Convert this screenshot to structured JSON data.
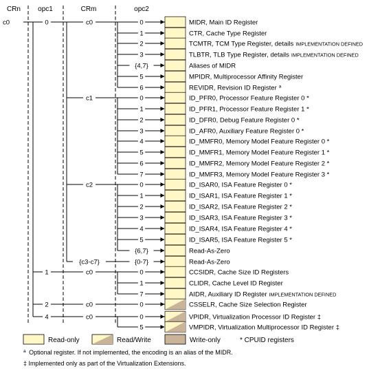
{
  "headers": {
    "crn": "CRn",
    "opc1": "opc1",
    "crm": "CRm",
    "opc2": "opc2"
  },
  "crn_label": "c0",
  "opc1_labels": [
    "0",
    "1",
    "2",
    "4"
  ],
  "crm_labels": [
    "c0",
    "c1",
    "c2",
    "{c3-c7}",
    "c0",
    "c0",
    "c0"
  ],
  "rows": [
    {
      "opc2": "0",
      "name": "MIDR, Main ID Register",
      "suffix": "",
      "fill": "ro"
    },
    {
      "opc2": "1",
      "name": "CTR, Cache Type Register",
      "suffix": "",
      "fill": "ro"
    },
    {
      "opc2": "2",
      "name": "TCMTR, TCM Type Register, details",
      "suffix": "IMPLEMENTATION DEFINED",
      "fill": "ro"
    },
    {
      "opc2": "3",
      "name": "TLBTR, TLB Type Register, details",
      "suffix": "IMPLEMENTATION DEFINED",
      "fill": "ro"
    },
    {
      "opc2": "{4,7}",
      "name": "Aliases of MIDR",
      "suffix": "",
      "fill": "ro"
    },
    {
      "opc2": "5",
      "name": "MPIDR, Multiprocessor Affinity Register",
      "suffix": "",
      "fill": "ro"
    },
    {
      "opc2": "6",
      "name": "REVIDR, Revision ID Register",
      "suffix": "",
      "sup": "a",
      "fill": "ro"
    },
    {
      "opc2": "0",
      "name": "ID_PFR0, Processor Feature Register 0 *",
      "suffix": "",
      "fill": "ro"
    },
    {
      "opc2": "1",
      "name": "ID_PFR1, Processor Feature Register 1 *",
      "suffix": "",
      "fill": "ro"
    },
    {
      "opc2": "2",
      "name": "ID_DFR0, Debug Feature Register 0 *",
      "suffix": "",
      "fill": "ro"
    },
    {
      "opc2": "3",
      "name": "ID_AFR0, Auxiliary Feature Register 0 *",
      "suffix": "",
      "fill": "ro"
    },
    {
      "opc2": "4",
      "name": "ID_MMFR0, Memory Model Feature Register 0 *",
      "suffix": "",
      "fill": "ro"
    },
    {
      "opc2": "5",
      "name": "ID_MMFR1, Memory Model Feature Register 1 *",
      "suffix": "",
      "fill": "ro"
    },
    {
      "opc2": "6",
      "name": "ID_MMFR2, Memory Model Feature Register 2 *",
      "suffix": "",
      "fill": "ro"
    },
    {
      "opc2": "7",
      "name": "ID_MMFR3, Memory Model Feature Register 3 *",
      "suffix": "",
      "fill": "ro"
    },
    {
      "opc2": "0",
      "name": "ID_ISAR0, ISA Feature Register 0 *",
      "suffix": "",
      "fill": "ro"
    },
    {
      "opc2": "1",
      "name": "ID_ISAR1, ISA Feature Register 1 *",
      "suffix": "",
      "fill": "ro"
    },
    {
      "opc2": "2",
      "name": "ID_ISAR2, ISA Feature Register 2 *",
      "suffix": "",
      "fill": "ro"
    },
    {
      "opc2": "3",
      "name": "ID_ISAR3, ISA Feature Register 3 *",
      "suffix": "",
      "fill": "ro"
    },
    {
      "opc2": "4",
      "name": "ID_ISAR4, ISA Feature Register 4 *",
      "suffix": "",
      "fill": "ro"
    },
    {
      "opc2": "5",
      "name": "ID_ISAR5, ISA Feature Register 5 *",
      "suffix": "",
      "fill": "ro"
    },
    {
      "opc2": "{6,7}",
      "name": "Read-As-Zero",
      "suffix": "",
      "fill": "ro"
    },
    {
      "opc2": "{0-7}",
      "name": "Read-As-Zero",
      "suffix": "",
      "fill": "ro"
    },
    {
      "opc2": "0",
      "name": "CCSIDR, Cache Size ID Registers",
      "suffix": "",
      "fill": "ro"
    },
    {
      "opc2": "1",
      "name": "CLIDR, Cache Level ID Register",
      "suffix": "",
      "fill": "ro"
    },
    {
      "opc2": "7",
      "name": "AIDR, Auxiliary ID Register",
      "suffix": "IMPLEMENTATION DEFINED",
      "fill": "ro"
    },
    {
      "opc2": "0",
      "name": "CSSELR, Cache Size Selection Register",
      "suffix": "",
      "fill": "rw"
    },
    {
      "opc2": "0",
      "name": "VPIDR, Virtualization Processor ID Register ‡",
      "suffix": "",
      "fill": "rw"
    },
    {
      "opc2": "5",
      "name": "VMPIDR, Virtualization Multiprocessor ID Register ‡",
      "suffix": "",
      "fill": "rw"
    }
  ],
  "legend": {
    "read_only": "Read-only",
    "read_write": "Read/Write",
    "write_only": "Write-only",
    "cpuid": "* CPUID registers"
  },
  "footnotes": {
    "a_mark": "a",
    "a_text": "Optional register. If not implemented, the encoding is an alias of the MIDR.",
    "dagger": "‡ Implemented only as part of the Virtualization Extensions."
  },
  "colors": {
    "read_only": "#FFF7C6",
    "read_write": "#C9B49A",
    "write_only": "#C9B49A",
    "line": "#000000"
  }
}
